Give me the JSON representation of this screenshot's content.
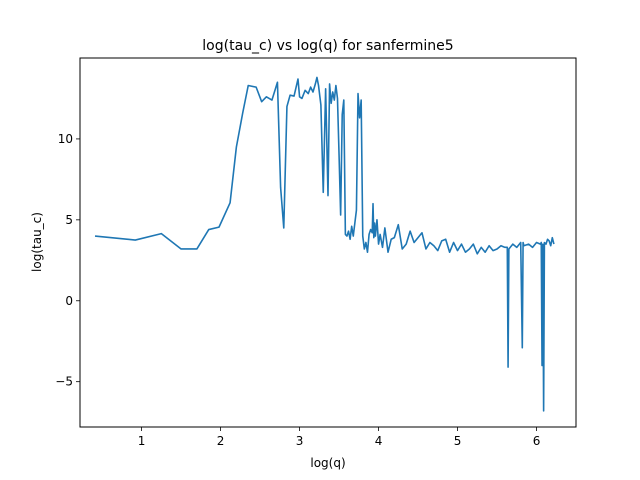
{
  "chart_data": {
    "type": "line",
    "title": "log(tau_c) vs log(q) for sanfermine5",
    "xlabel": "log(q)",
    "ylabel": "log(tau_c)",
    "xlim": [
      0.22,
      6.5
    ],
    "ylim": [
      -7.8,
      15.0
    ],
    "xticks": [
      1,
      2,
      3,
      4,
      5,
      6
    ],
    "yticks": [
      -5,
      0,
      5,
      10
    ],
    "grid": false,
    "legend": "none",
    "series": [
      {
        "color": "#1f77b4",
        "x": [
          0.41,
          0.92,
          1.25,
          1.5,
          1.7,
          1.85,
          1.98,
          2.12,
          2.2,
          2.28,
          2.35,
          2.45,
          2.52,
          2.58,
          2.65,
          2.72,
          2.76,
          2.8,
          2.84,
          2.88,
          2.93,
          2.98,
          3.0,
          3.03,
          3.07,
          3.11,
          3.14,
          3.17,
          3.2,
          3.22,
          3.24,
          3.27,
          3.3,
          3.33,
          3.36,
          3.38,
          3.4,
          3.42,
          3.44,
          3.46,
          3.48,
          3.5,
          3.52,
          3.54,
          3.56,
          3.58,
          3.6,
          3.62,
          3.64,
          3.66,
          3.68,
          3.7,
          3.72,
          3.74,
          3.76,
          3.78,
          3.8,
          3.82,
          3.84,
          3.86,
          3.88,
          3.9,
          3.92,
          3.93,
          3.94,
          3.95,
          3.96,
          3.98,
          4.0,
          4.02,
          4.05,
          4.08,
          4.12,
          4.16,
          4.2,
          4.25,
          4.3,
          4.35,
          4.4,
          4.45,
          4.5,
          4.55,
          4.6,
          4.65,
          4.7,
          4.75,
          4.8,
          4.85,
          4.9,
          4.95,
          5.0,
          5.05,
          5.1,
          5.15,
          5.2,
          5.25,
          5.3,
          5.35,
          5.4,
          5.45,
          5.5,
          5.55,
          5.6,
          5.63,
          5.64,
          5.65,
          5.7,
          5.75,
          5.8,
          5.82,
          5.83,
          5.84,
          5.9,
          5.95,
          6.0,
          6.05,
          6.06,
          6.07,
          6.08,
          6.09,
          6.1,
          6.12,
          6.14,
          6.16,
          6.18,
          6.2,
          6.22
        ],
        "y": [
          4.0,
          3.75,
          4.15,
          3.2,
          3.2,
          4.4,
          4.55,
          6.05,
          9.5,
          11.6,
          13.3,
          13.2,
          12.3,
          12.6,
          12.4,
          13.5,
          7.0,
          4.5,
          12.0,
          12.7,
          12.65,
          13.7,
          12.6,
          12.5,
          13.0,
          12.8,
          13.2,
          12.9,
          13.4,
          13.8,
          13.3,
          12.1,
          6.7,
          13.1,
          6.5,
          13.4,
          12.2,
          12.9,
          12.4,
          13.3,
          12.5,
          9.0,
          5.3,
          11.5,
          12.4,
          4.1,
          4.0,
          4.3,
          3.8,
          4.6,
          4.0,
          4.8,
          5.6,
          12.8,
          11.3,
          12.4,
          4.0,
          3.2,
          3.6,
          3.0,
          4.1,
          4.4,
          4.2,
          6.0,
          3.9,
          4.8,
          4.0,
          5.0,
          3.5,
          4.1,
          3.3,
          4.5,
          3.0,
          3.8,
          3.9,
          4.7,
          3.2,
          3.5,
          4.3,
          3.6,
          3.9,
          4.2,
          3.2,
          3.6,
          3.4,
          3.1,
          3.7,
          3.8,
          3.0,
          3.6,
          3.1,
          3.5,
          3.0,
          3.2,
          3.5,
          2.9,
          3.3,
          3.0,
          3.4,
          3.1,
          3.2,
          3.4,
          3.3,
          3.3,
          -4.1,
          3.2,
          3.5,
          3.3,
          3.6,
          -2.9,
          3.6,
          3.4,
          3.5,
          3.3,
          3.6,
          3.5,
          3.6,
          -4.0,
          3.5,
          -6.8,
          3.6,
          3.5,
          3.8,
          3.7,
          3.4,
          3.9,
          3.5
        ]
      }
    ]
  }
}
